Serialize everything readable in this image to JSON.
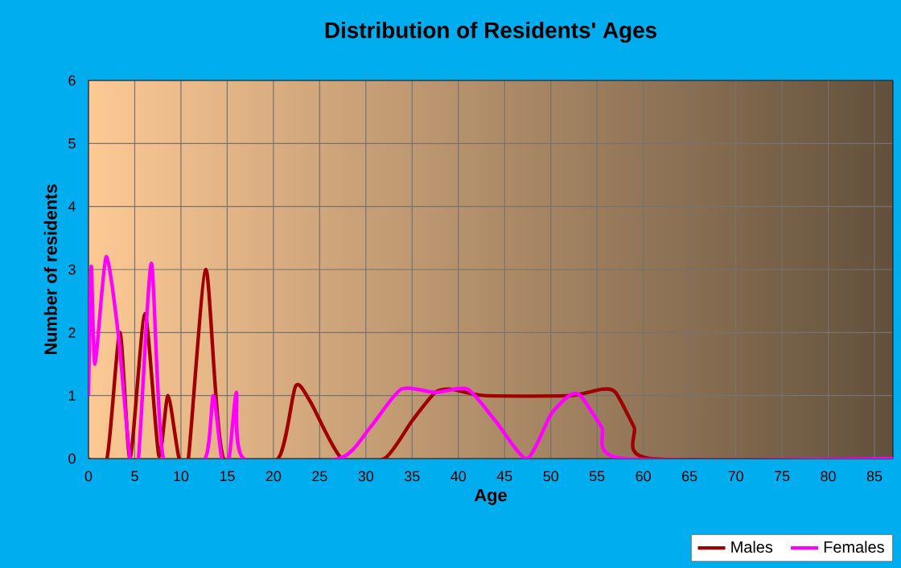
{
  "chart_data": {
    "type": "line",
    "title": "Distribution of Residents' Ages",
    "xlabel": "Age",
    "ylabel": "Number of residents",
    "xlim": [
      0,
      87
    ],
    "ylim": [
      0,
      6
    ],
    "xticks": [
      0,
      5,
      10,
      15,
      20,
      25,
      30,
      35,
      40,
      45,
      50,
      55,
      60,
      65,
      70,
      75,
      80,
      85
    ],
    "yticks": [
      0,
      1,
      2,
      3,
      4,
      5,
      6
    ],
    "grid": true,
    "legend": "bottom right",
    "marker": "none",
    "line_style": "solid",
    "series": [
      {
        "name": "Males",
        "color": "#a00000",
        "x": [
          0,
          2,
          3.4,
          4.5,
          6.1,
          7.6,
          8.6,
          9.8,
          10.8,
          12.7,
          14.6,
          20.5,
          22.4,
          24,
          27.4,
          32,
          35,
          37.5,
          39.3,
          42.8,
          52,
          55.5,
          57,
          59,
          60.7,
          87
        ],
        "values": [
          0,
          0,
          2.0,
          0,
          2.3,
          0.05,
          1.0,
          0,
          0,
          3.0,
          0,
          0,
          1.15,
          0.9,
          0,
          0,
          0.6,
          1.05,
          1.1,
          1.0,
          1.0,
          1.1,
          1.05,
          0.5,
          0,
          0
        ]
      },
      {
        "name": "Females",
        "color": "#ff00ff",
        "x": [
          0,
          0.3,
          0.7,
          1.9,
          3.2,
          4.5,
          5.4,
          6.8,
          8.1,
          12.6,
          13.5,
          14.4,
          15.2,
          16,
          16.8,
          27.1,
          30.5,
          33.8,
          37.5,
          41,
          44,
          47.4,
          50,
          52,
          53.2,
          55.5,
          57.8,
          87
        ],
        "values": [
          1.0,
          3.05,
          1.5,
          3.2,
          2.0,
          0,
          0,
          3.1,
          0,
          0,
          1.0,
          0,
          0,
          1.05,
          0,
          0,
          0.5,
          1.1,
          1.05,
          1.1,
          0.6,
          0,
          0.7,
          1.0,
          1.0,
          0.5,
          0,
          0
        ]
      }
    ]
  }
}
